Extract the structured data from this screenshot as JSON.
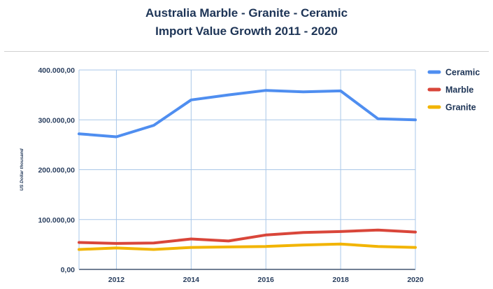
{
  "chart_data": {
    "type": "line",
    "title_lines": [
      "Australia Marble - Granite - Ceramic",
      "Import Value Growth 2011 - 2020"
    ],
    "xlabel": "",
    "ylabel": "US Dollar thousand",
    "x": [
      2011,
      2012,
      2013,
      2014,
      2015,
      2016,
      2017,
      2018,
      2019,
      2020
    ],
    "x_ticks": [
      "2012",
      "2014",
      "2016",
      "2018",
      "2020"
    ],
    "x_tick_values": [
      2012,
      2014,
      2016,
      2018,
      2020
    ],
    "y_ticks": [
      "0,00",
      "100.000,00",
      "200.000,00",
      "300.000,00",
      "400.000,00"
    ],
    "y_tick_values": [
      0,
      100000,
      200000,
      300000,
      400000
    ],
    "ylim": [
      0,
      400000
    ],
    "xlim": [
      2011,
      2020
    ],
    "grid": true,
    "legend_position": "right",
    "series": [
      {
        "name": "Ceramic",
        "color": "#4f8ef0",
        "values": [
          272000,
          266000,
          289000,
          340000,
          350000,
          359000,
          356000,
          358000,
          302000,
          300000
        ]
      },
      {
        "name": "Marble",
        "color": "#d9463a",
        "values": [
          54000,
          52000,
          53000,
          61000,
          57000,
          69000,
          74000,
          76000,
          79000,
          75000
        ]
      },
      {
        "name": "Granite",
        "color": "#f2b400",
        "values": [
          40000,
          43000,
          40000,
          44000,
          45000,
          46000,
          49000,
          51000,
          46000,
          44000
        ]
      }
    ]
  }
}
